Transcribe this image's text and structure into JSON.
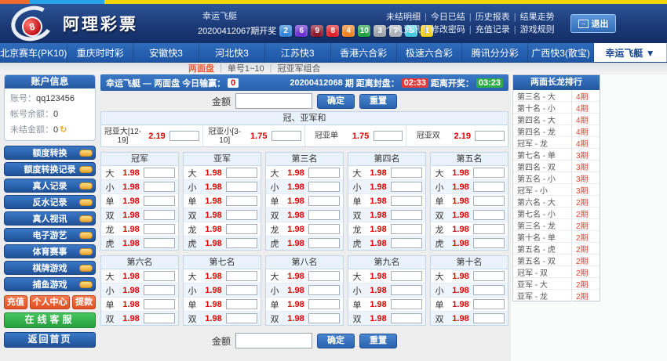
{
  "top_strip": {
    "colors": [
      "#f06a2c",
      "#29a2ec",
      "#f2d408"
    ]
  },
  "header": {
    "logo_text": "阿理彩票",
    "logo_ball": "8",
    "draw": {
      "game": "幸运飞艇",
      "label": "20200412067期开奖",
      "balls": [
        {
          "n": "2",
          "color": "#2e83d8"
        },
        {
          "n": "6",
          "color": "#6b2fd0"
        },
        {
          "n": "9",
          "color": "#8c1529"
        },
        {
          "n": "8",
          "color": "#e02128"
        },
        {
          "n": "4",
          "color": "#f08020"
        },
        {
          "n": "10",
          "color": "#22a044"
        },
        {
          "n": "3",
          "color": "#9aa0a6"
        },
        {
          "n": "7",
          "color": "#aab0b6"
        },
        {
          "n": "5",
          "color": "#44c8e0"
        },
        {
          "n": "1",
          "color": "#f0d019"
        }
      ]
    },
    "links_row1": [
      "未结明细",
      "今日已结",
      "历史报表",
      "结果走势"
    ],
    "links_row2": [
      "个人资讯",
      "修改密码",
      "充值记录",
      "游戏规则"
    ],
    "logout_label": "退出"
  },
  "nav": {
    "tabs": [
      "北京赛车(PK10)",
      "重庆时时彩",
      "安徽快3",
      "河北快3",
      "江苏快3",
      "香港六合彩",
      "极速六合彩",
      "腾讯分分彩",
      "广西快3(散宝)",
      "幸运飞艇 ▼"
    ],
    "active_index": 9
  },
  "subnav": {
    "items": [
      "两面盘",
      "单号1~10",
      "冠亚军组合"
    ],
    "active_index": 0
  },
  "sidebar": {
    "account": {
      "title": "账户信息",
      "rows": [
        {
          "label": "账号：",
          "value": "qq123456",
          "refresh": false
        },
        {
          "label": "帐号余额：",
          "value": "0",
          "refresh": false
        },
        {
          "label": "未结金额：",
          "value": "0",
          "refresh": true
        }
      ]
    },
    "menu": [
      "额度转换",
      "额度转换记录",
      "真人记录",
      "反水记录",
      "真人视讯",
      "电子游艺",
      "体育赛事",
      "棋牌游戏",
      "捕鱼游戏"
    ],
    "action_buttons": [
      "充值",
      "个人中心",
      "提款"
    ],
    "service_button": "在线客服",
    "home_button": "返回首页"
  },
  "main": {
    "title": "幸运飞艇 — 两面盘",
    "win_label": "今日输赢：",
    "win_value": "0",
    "period": "20200412068",
    "period_suffix": "期",
    "close_label": "距离封盘：",
    "close_time": "02:33",
    "open_label": "距离开奖：",
    "open_time": "03:23",
    "amount_label": "金额",
    "confirm_label": "确定",
    "reset_label": "重置"
  },
  "betting": {
    "sum_title": "冠、亚军和",
    "sum_cells": [
      {
        "name": "冠亚大[12-19]",
        "odds": "2.19"
      },
      {
        "name": "冠亚小[3-10]",
        "odds": "1.75"
      },
      {
        "name": "冠亚单",
        "odds": "1.75"
      },
      {
        "name": "冠亚双",
        "odds": "2.19"
      }
    ],
    "grid1": {
      "columns": [
        "冠军",
        "亚军",
        "第三名",
        "第四名",
        "第五名"
      ],
      "row_labels": [
        "大",
        "小",
        "单",
        "双",
        "龙",
        "虎"
      ],
      "odds": "1.98"
    },
    "grid2": {
      "columns": [
        "第六名",
        "第七名",
        "第八名",
        "第九名",
        "第十名"
      ],
      "row_labels": [
        "大",
        "小",
        "单",
        "双"
      ],
      "odds": "1.98"
    }
  },
  "long_dragon": {
    "title": "两面长龙排行",
    "rows": [
      {
        "label": "第三名 - 大",
        "streak": "4期"
      },
      {
        "label": "第十名 - 小",
        "streak": "4期"
      },
      {
        "label": "第四名 - 大",
        "streak": "4期"
      },
      {
        "label": "第四名 - 龙",
        "streak": "4期"
      },
      {
        "label": "冠军 - 龙",
        "streak": "4期"
      },
      {
        "label": "第七名 - 单",
        "streak": "3期"
      },
      {
        "label": "第四名 - 双",
        "streak": "3期"
      },
      {
        "label": "第五名 - 小",
        "streak": "3期"
      },
      {
        "label": "冠军 - 小",
        "streak": "3期"
      },
      {
        "label": "第六名 - 大",
        "streak": "2期"
      },
      {
        "label": "第七名 - 小",
        "streak": "2期"
      },
      {
        "label": "第三名 - 龙",
        "streak": "2期"
      },
      {
        "label": "第十名 - 单",
        "streak": "2期"
      },
      {
        "label": "第五名 - 虎",
        "streak": "2期"
      },
      {
        "label": "第五名 - 双",
        "streak": "2期"
      },
      {
        "label": "冠军 - 双",
        "streak": "2期"
      },
      {
        "label": "亚军 - 大",
        "streak": "2期"
      },
      {
        "label": "亚军 - 龙",
        "streak": "2期"
      }
    ]
  }
}
